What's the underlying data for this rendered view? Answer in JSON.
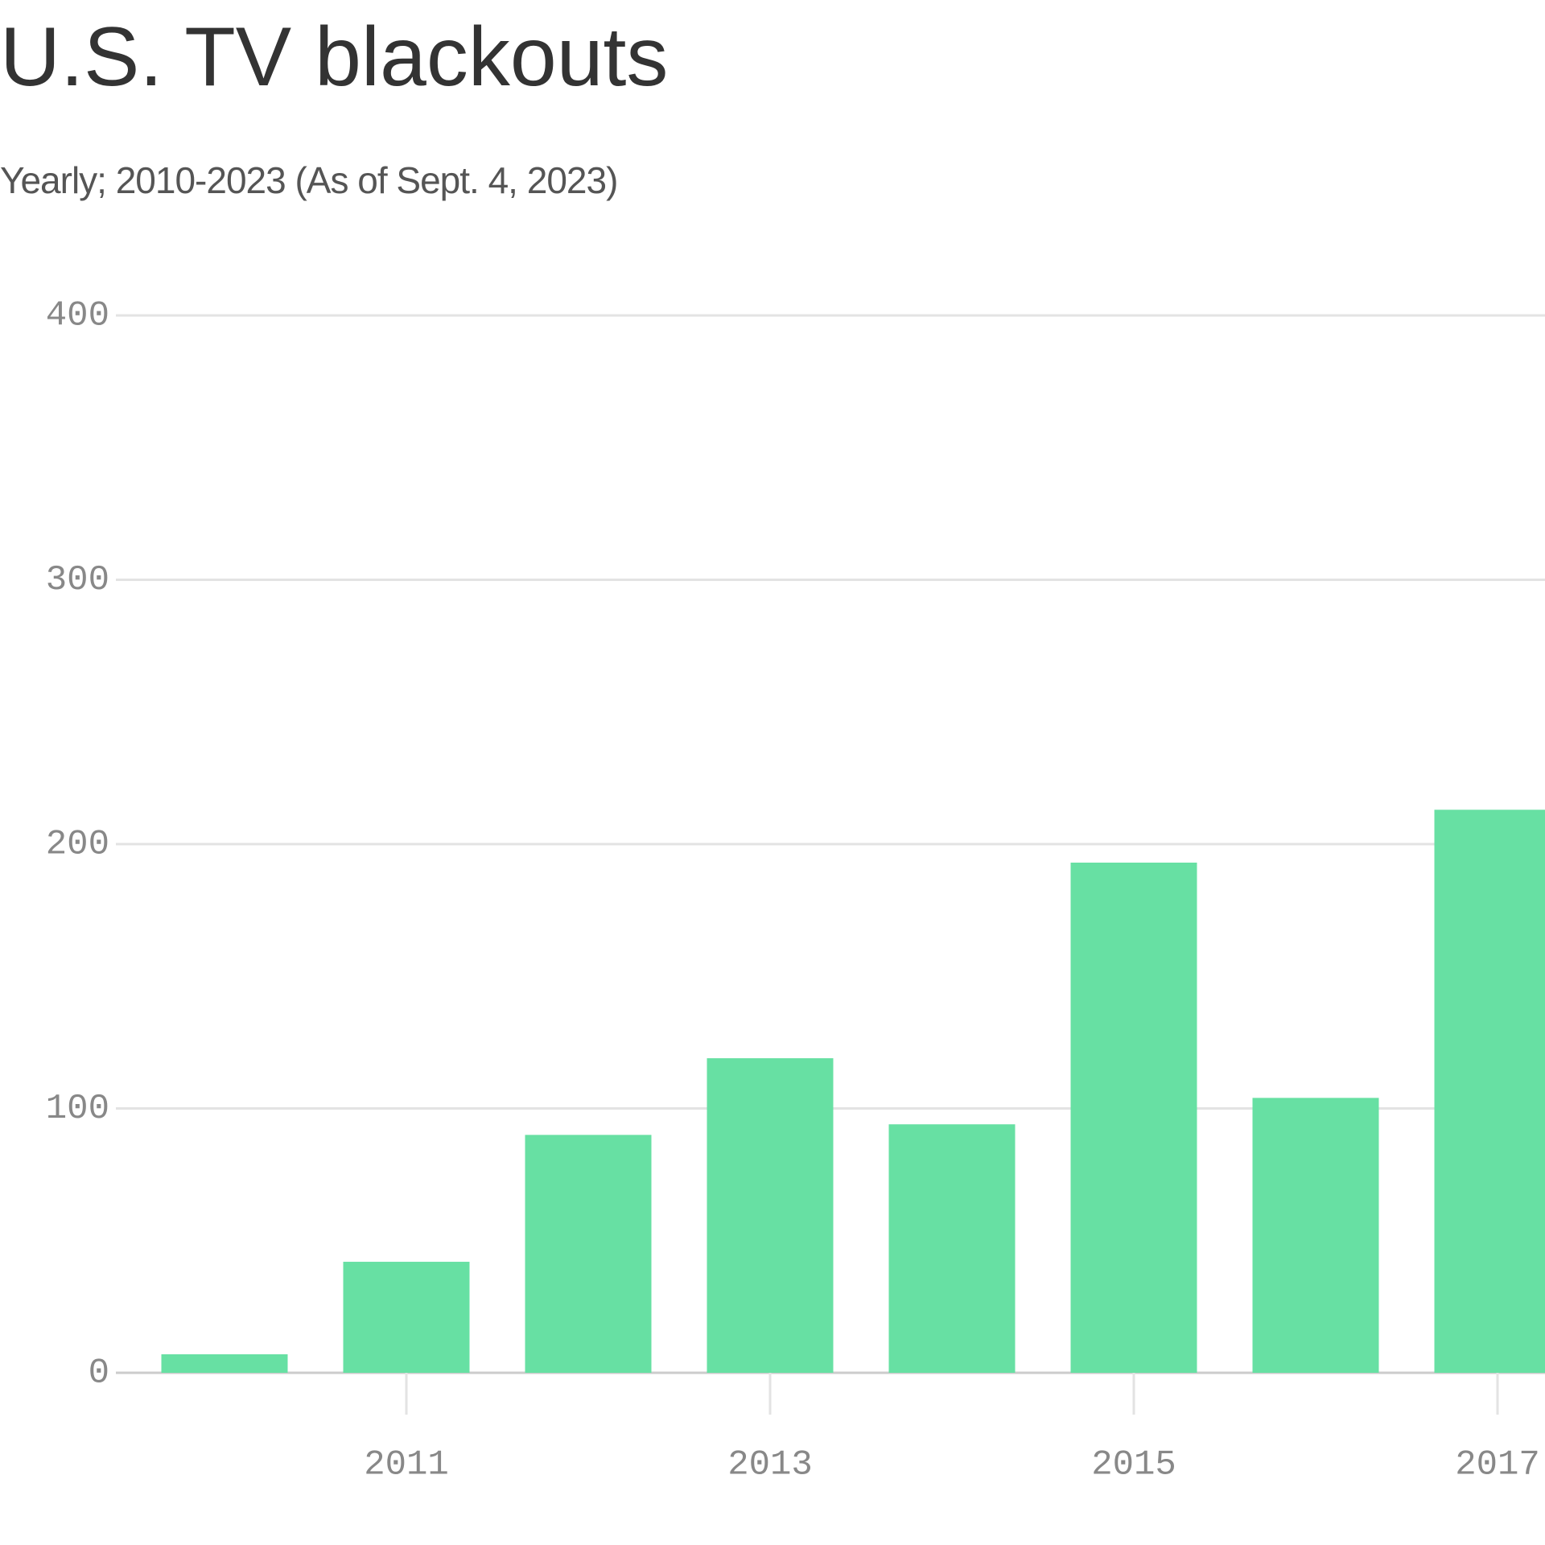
{
  "chart_data": {
    "type": "bar",
    "title": "U.S. TV blackouts",
    "subtitle": "Yearly; 2010-2023 (As of Sept. 4, 2023)",
    "categories": [
      null,
      "2011",
      null,
      "2013",
      null,
      "2015",
      null,
      "2017"
    ],
    "values": [
      7,
      42,
      90,
      119,
      94,
      193,
      104,
      213
    ],
    "color": "#67e0a3",
    "ylim": [
      0,
      400
    ],
    "yticks": [
      0,
      100,
      200,
      300,
      400
    ],
    "grid": true
  }
}
